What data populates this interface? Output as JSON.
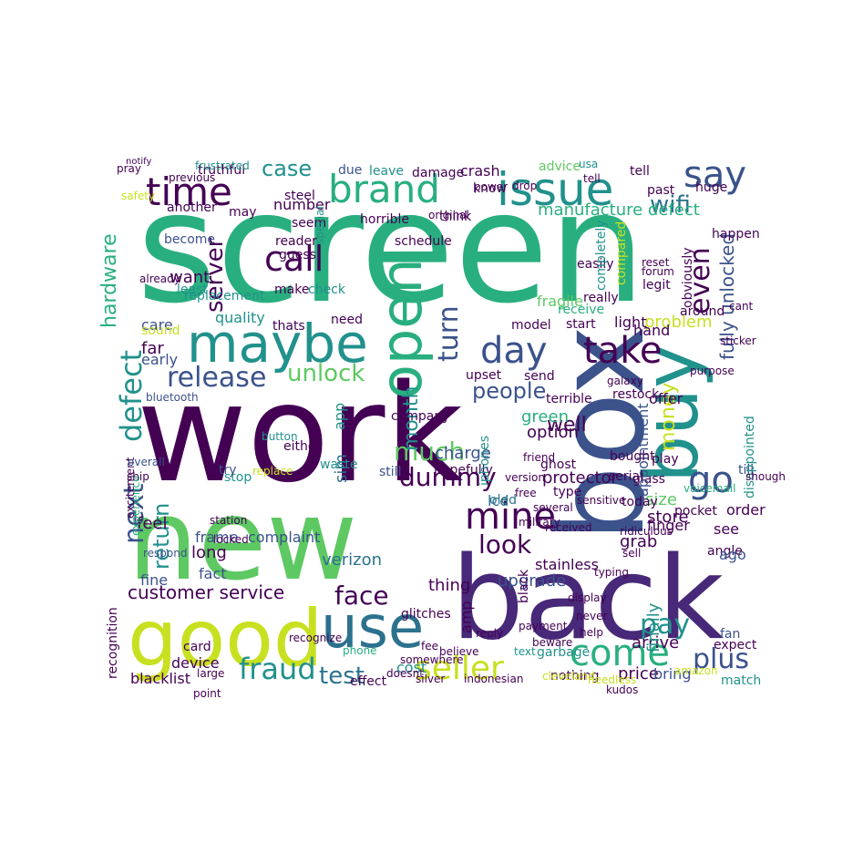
{
  "colors": {
    "background": "#ffffff",
    "dark_purple": "#440154",
    "indigo": "#3b528b",
    "teal": "#21918c",
    "green": "#29af7f",
    "lime": "#5ec962",
    "yellow": "#c8e020",
    "purple": "#482878",
    "blue": "#2c728e"
  },
  "words": [
    "screen",
    "work",
    "new",
    "back",
    "box",
    "buy",
    "good",
    "use",
    "maybe",
    "open",
    "issue",
    "time",
    "brand",
    "say",
    "call",
    "day",
    "take",
    "come",
    "seller",
    "fraud",
    "go",
    "mine",
    "defect",
    "next",
    "return",
    "release",
    "unlock",
    "much",
    "dummy",
    "look",
    "face",
    "customer service",
    "pay",
    "plus",
    "test",
    "money",
    "even",
    "wifi",
    "case",
    "hardware",
    "server",
    "turn",
    "month",
    "fully unlocked",
    "manufacture defect",
    "problem",
    "quality",
    "care",
    "far",
    "early",
    "feel",
    "fine",
    "long",
    "fact",
    "frame",
    "complaint",
    "verizon",
    "sim",
    "app",
    "people",
    "well",
    "green",
    "option",
    "lcd",
    "protector",
    "glass",
    "oled",
    "charge",
    "thing",
    "cost",
    "price",
    "bring",
    "match",
    "angle",
    "expect",
    "fan",
    "arrive",
    "finally",
    "upgrade",
    "grab",
    "stainless",
    "store",
    "size",
    "pocket",
    "finger",
    "ago",
    "see",
    "order",
    "till",
    "appointment",
    "disappointed",
    "hand",
    "play",
    "offer",
    "terrible",
    "restock",
    "send",
    "still",
    "company",
    "hopefully",
    "bought",
    "serial",
    "today",
    "type",
    "blacklist",
    "recognition",
    "device",
    "card",
    "garbage",
    "nothing",
    "effect",
    "glitches",
    "amp",
    "black",
    "iphones",
    "waste",
    "either",
    "stop",
    "try",
    "light",
    "upset",
    "start",
    "really",
    "fragile",
    "receive",
    "model",
    "legit",
    "easily",
    "compared",
    "completely",
    "around",
    "obviously",
    "happen",
    "huge",
    "tell",
    "past",
    "advice",
    "usa",
    "damage",
    "crash",
    "due",
    "leave",
    "know",
    "think",
    "horrible",
    "steel",
    "truthful",
    "another",
    "may",
    "number",
    "seem",
    "become",
    "reader",
    "special",
    "schedule",
    "guess",
    "make",
    "check",
    "need",
    "want",
    "least",
    "replacement",
    "thats",
    "sound",
    "bluetooth",
    "ghost",
    "galaxy",
    "version",
    "friend",
    "several",
    "military",
    "sensitive",
    "voicemail",
    "ridiculous",
    "free",
    "sell",
    "typing",
    "display",
    "received",
    "payment",
    "silver",
    "indonesian",
    "somewhere",
    "doesnt",
    "cleveland",
    "needless",
    "kudos",
    "beware",
    "help",
    "never",
    "text",
    "reply",
    "fee",
    "believe",
    "point",
    "large",
    "phone",
    "recognize",
    "locked",
    "station",
    "respond",
    "experience",
    "amazon",
    "excitement",
    "replace",
    "button",
    "ship",
    "overall",
    "shough",
    "reset",
    "forum",
    "cant",
    "sticker",
    "purpose",
    "already",
    "safety",
    "pray",
    "notify",
    "frustrated",
    "previous",
    "original",
    "tell",
    "power",
    "drop"
  ]
}
